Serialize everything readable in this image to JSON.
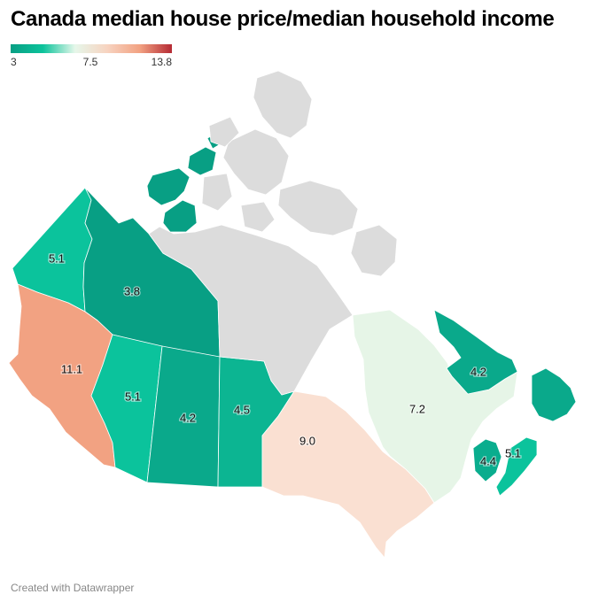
{
  "title": "Canada median house price/median household income",
  "legend": {
    "min_label": "3",
    "mid_label": "7.5",
    "max_label": "13.8",
    "colors": [
      "#089f84",
      "#0cc39b",
      "#e6f7ea",
      "#f7d3c0",
      "#f2a282",
      "#b52a34"
    ]
  },
  "regions": [
    {
      "name": "Yukon",
      "value": 5.1,
      "label": "5.1",
      "color": "#0bc39c"
    },
    {
      "name": "Northwest Territories",
      "value": 3.8,
      "label": "3.8",
      "color": "#089f84"
    },
    {
      "name": "British Columbia",
      "value": 11.1,
      "label": "11.1",
      "color": "#f2a282"
    },
    {
      "name": "Alberta",
      "value": 5.1,
      "label": "5.1",
      "color": "#0bc39c"
    },
    {
      "name": "Saskatchewan",
      "value": 4.2,
      "label": "4.2",
      "color": "#0aa98b"
    },
    {
      "name": "Manitoba",
      "value": 4.5,
      "label": "4.5",
      "color": "#0cb592"
    },
    {
      "name": "Ontario",
      "value": 9.0,
      "label": "9.0",
      "color": "#fae0d2"
    },
    {
      "name": "Quebec",
      "value": 7.2,
      "label": "7.2",
      "color": "#e6f5e7"
    },
    {
      "name": "Newfoundland and Labrador",
      "value": 4.2,
      "label": "4.2",
      "color": "#0aa98b"
    },
    {
      "name": "New Brunswick",
      "value": 4.4,
      "label": "4.4",
      "color": "#0aad8e"
    },
    {
      "name": "Nova Scotia",
      "value": 5.1,
      "label": "5.1",
      "color": "#0bc39c"
    },
    {
      "name": "Nunavut",
      "value": null,
      "label": "",
      "color": "#dcdcdc"
    }
  ],
  "footer": "Created with Datawrapper"
}
